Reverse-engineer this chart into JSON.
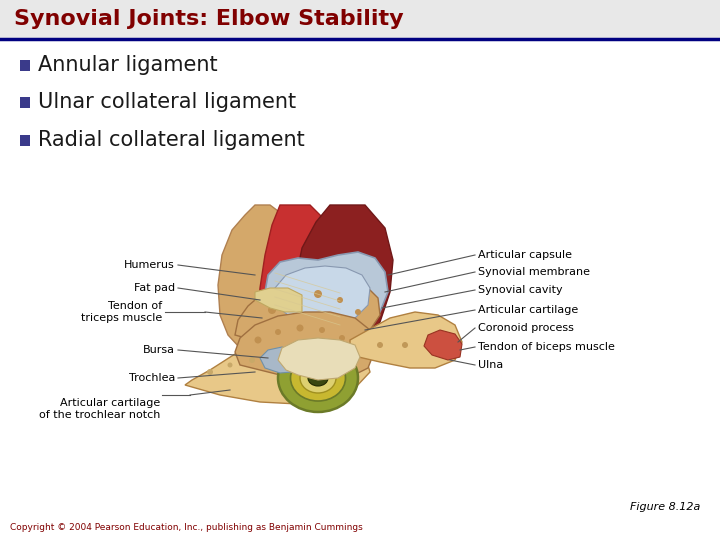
{
  "title": "Synovial Joints: Elbow Stability",
  "title_color": "#800000",
  "title_bg_color": "#e8e8e8",
  "title_underline_color": "#000080",
  "bullet_color": "#3a3a8a",
  "text_color": "#1a1a1a",
  "bullets": [
    "Annular ligament",
    "Ulnar collateral ligament",
    "Radial collateral ligament"
  ],
  "figure_label": "Figure 8.12a",
  "copyright_text": "Copyright © 2004 Pearson Education, Inc., publishing as Benjamin Cummings",
  "bg_color": "#ffffff",
  "title_fontsize": 16,
  "bullet_fontsize": 15,
  "label_fontsize": 8,
  "small_fontsize": 8
}
